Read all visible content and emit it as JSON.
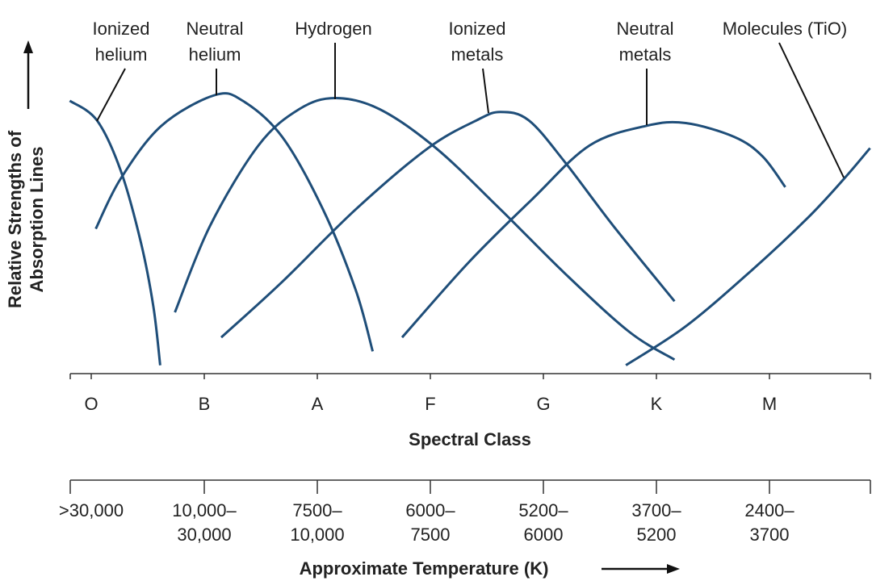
{
  "chart_data": {
    "type": "line",
    "xlabel": "Spectral Class",
    "ylabel": [
      "Relative Strengths of",
      "Absorption Lines"
    ],
    "categories": [
      "O",
      "B",
      "A",
      "F",
      "G",
      "K",
      "M"
    ],
    "temperature_axis": {
      "label": "Approximate Temperature (K)",
      "ranges": [
        [
          ">30,000"
        ],
        [
          "10,000–",
          "30,000"
        ],
        [
          "7500–",
          "10,000"
        ],
        [
          "6000–",
          "7500"
        ],
        [
          "5200–",
          "6000"
        ],
        [
          "3700–",
          "5200"
        ],
        [
          "2400–",
          "3700"
        ]
      ]
    },
    "grid": false,
    "series": [
      {
        "name": [
          "Ionized",
          "helium"
        ],
        "points": [
          [
            -0.19,
            0.98
          ],
          [
            0.05,
            0.91
          ],
          [
            0.26,
            0.73
          ],
          [
            0.44,
            0.47
          ],
          [
            0.55,
            0.24
          ],
          [
            0.61,
            0.03
          ]
        ]
      },
      {
        "name": [
          "Neutral",
          "helium"
        ],
        "points": [
          [
            0.04,
            0.52
          ],
          [
            0.26,
            0.7
          ],
          [
            0.62,
            0.89
          ],
          [
            1.09,
            1.0
          ],
          [
            1.34,
            0.98
          ],
          [
            1.69,
            0.85
          ],
          [
            2.05,
            0.59
          ],
          [
            2.34,
            0.3
          ],
          [
            2.49,
            0.08
          ]
        ]
      },
      {
        "name": [
          "Hydrogen"
        ],
        "points": [
          [
            0.74,
            0.22
          ],
          [
            1.05,
            0.53
          ],
          [
            1.48,
            0.82
          ],
          [
            1.84,
            0.95
          ],
          [
            2.16,
            0.99
          ],
          [
            2.55,
            0.95
          ],
          [
            3.05,
            0.81
          ],
          [
            3.62,
            0.59
          ],
          [
            4.19,
            0.36
          ],
          [
            4.76,
            0.15
          ],
          [
            5.16,
            0.05
          ]
        ]
      },
      {
        "name": [
          "Ionized",
          "metals"
        ],
        "points": [
          [
            1.15,
            0.13
          ],
          [
            1.69,
            0.33
          ],
          [
            2.34,
            0.59
          ],
          [
            2.98,
            0.81
          ],
          [
            3.41,
            0.91
          ],
          [
            3.62,
            0.94
          ],
          [
            3.87,
            0.91
          ],
          [
            4.19,
            0.76
          ],
          [
            4.62,
            0.53
          ],
          [
            5.16,
            0.26
          ]
        ]
      },
      {
        "name": [
          "Neutral",
          "metals"
        ],
        "points": [
          [
            2.75,
            0.13
          ],
          [
            3.34,
            0.4
          ],
          [
            3.91,
            0.63
          ],
          [
            4.41,
            0.82
          ],
          [
            4.91,
            0.89
          ],
          [
            5.26,
            0.9
          ],
          [
            5.69,
            0.85
          ],
          [
            5.94,
            0.78
          ],
          [
            6.14,
            0.67
          ]
        ]
      },
      {
        "name": [
          "Molecules (TiO)"
        ],
        "points": [
          [
            4.73,
            0.03
          ],
          [
            5.26,
            0.17
          ],
          [
            5.84,
            0.37
          ],
          [
            6.34,
            0.56
          ],
          [
            6.66,
            0.7
          ],
          [
            6.89,
            0.81
          ]
        ]
      }
    ],
    "color": "#1f4e79"
  }
}
